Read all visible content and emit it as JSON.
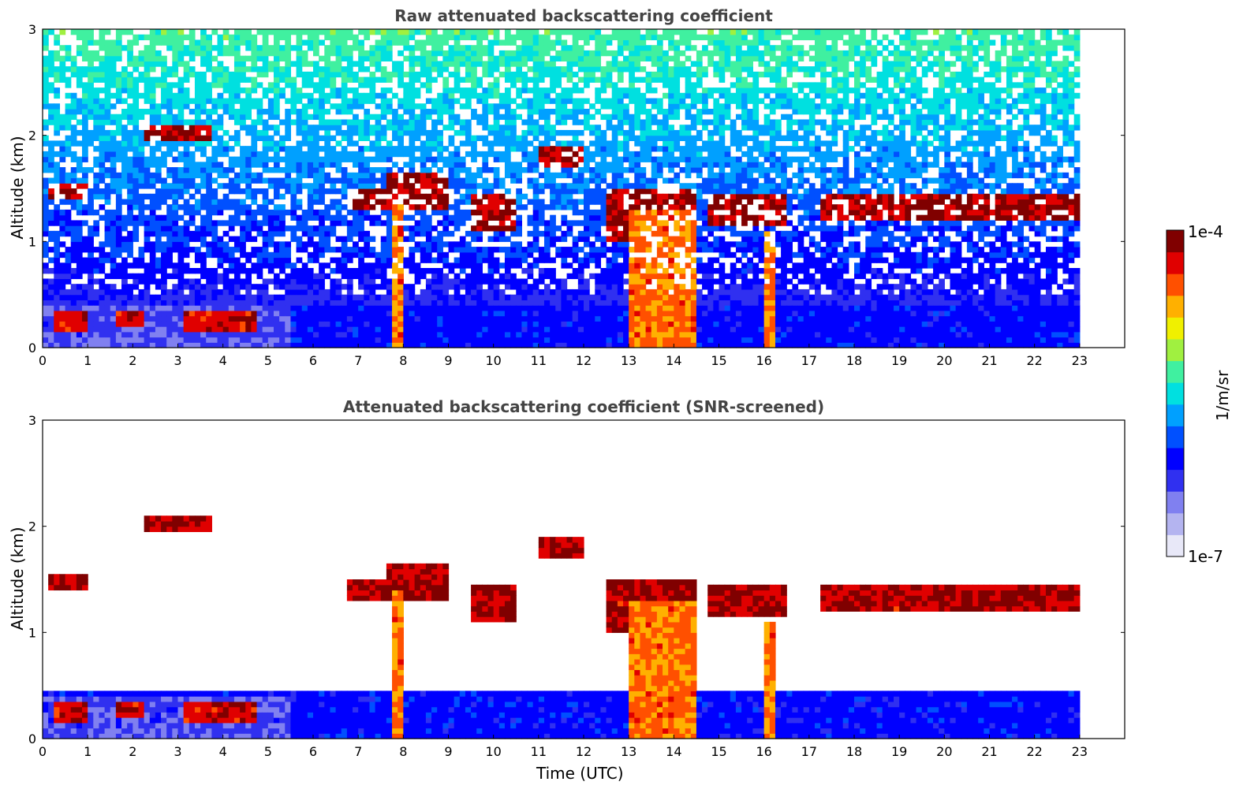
{
  "chart_data": [
    {
      "type": "heatmap",
      "title": "Raw attenuated backscattering coefficient",
      "xlabel": "",
      "ylabel": "Altitude (km)",
      "xlim": [
        0,
        24
      ],
      "ylim": [
        0,
        3
      ],
      "x_ticks": [
        "0",
        "1",
        "2",
        "3",
        "4",
        "5",
        "6",
        "7",
        "8",
        "9",
        "10",
        "11",
        "12",
        "13",
        "14",
        "15",
        "16",
        "17",
        "18",
        "19",
        "20",
        "21",
        "22",
        "23"
      ],
      "y_ticks": [
        "0",
        "1",
        "2",
        "3"
      ],
      "data_end_time": 23,
      "features": [
        {
          "kind": "boundary_layer",
          "t": [
            0.0,
            5.5
          ],
          "z": [
            0.0,
            0.4
          ],
          "level": 0.25
        },
        {
          "kind": "aerosol_layer",
          "t": [
            0.2,
            1.0
          ],
          "z": [
            0.15,
            0.35
          ],
          "level": 0.95
        },
        {
          "kind": "aerosol_layer",
          "t": [
            1.6,
            2.3
          ],
          "z": [
            0.2,
            0.35
          ],
          "level": 0.95
        },
        {
          "kind": "aerosol_layer",
          "t": [
            3.1,
            4.7
          ],
          "z": [
            0.15,
            0.35
          ],
          "level": 0.95
        },
        {
          "kind": "cloud",
          "t": [
            2.3,
            3.8
          ],
          "z": [
            1.95,
            2.1
          ],
          "level": 0.98
        },
        {
          "kind": "cloud",
          "t": [
            0.1,
            1.0
          ],
          "z": [
            1.4,
            1.55
          ],
          "level": 0.98
        },
        {
          "kind": "cloud",
          "t": [
            6.8,
            7.6
          ],
          "z": [
            1.3,
            1.5
          ],
          "level": 0.98
        },
        {
          "kind": "cloud",
          "t": [
            7.6,
            9.0
          ],
          "z": [
            1.3,
            1.65
          ],
          "level": 0.98
        },
        {
          "kind": "cloud",
          "t": [
            9.5,
            10.5
          ],
          "z": [
            1.1,
            1.45
          ],
          "level": 0.98
        },
        {
          "kind": "cloud",
          "t": [
            11.0,
            12.0
          ],
          "z": [
            1.7,
            1.9
          ],
          "level": 0.98
        },
        {
          "kind": "cloud",
          "t": [
            12.5,
            14.5
          ],
          "z": [
            1.0,
            1.5
          ],
          "level": 0.98
        },
        {
          "kind": "cloud",
          "t": [
            14.8,
            16.5
          ],
          "z": [
            1.15,
            1.45
          ],
          "level": 0.98
        },
        {
          "kind": "cloud",
          "t": [
            17.2,
            23.0
          ],
          "z": [
            1.2,
            1.45
          ],
          "level": 0.98
        },
        {
          "kind": "precip_column",
          "t": [
            7.8,
            8.0
          ],
          "z": [
            0.0,
            1.4
          ],
          "level": 0.85
        },
        {
          "kind": "precip_column",
          "t": [
            13.0,
            14.5
          ],
          "z": [
            0.0,
            1.3
          ],
          "level": 0.85
        },
        {
          "kind": "precip_column",
          "t": [
            16.0,
            16.3
          ],
          "z": [
            0.0,
            1.1
          ],
          "level": 0.85
        }
      ]
    },
    {
      "type": "heatmap",
      "title": "Attenuated backscattering coefficient (SNR-screened)",
      "xlabel": "Time (UTC)",
      "ylabel": "Altitude (km)",
      "xlim": [
        0,
        24
      ],
      "ylim": [
        0,
        3
      ],
      "x_ticks": [
        "0",
        "1",
        "2",
        "3",
        "4",
        "5",
        "6",
        "7",
        "8",
        "9",
        "10",
        "11",
        "12",
        "13",
        "14",
        "15",
        "16",
        "17",
        "18",
        "19",
        "20",
        "21",
        "22",
        "23"
      ],
      "y_ticks": [
        "0",
        "1",
        "2",
        "3"
      ],
      "data_end_time": 23,
      "screened": true
    }
  ],
  "colorbar": {
    "label": "1/m/sr",
    "max_label": "1e-4",
    "min_label": "1e-7",
    "colors": [
      "#e8e8f8",
      "#b4b4f0",
      "#8080f0",
      "#3030f0",
      "#0000ff",
      "#0050ff",
      "#00a0ff",
      "#00e0e0",
      "#40f0a0",
      "#a0f040",
      "#f0f000",
      "#ffb000",
      "#ff5000",
      "#e00000",
      "#800000"
    ]
  }
}
